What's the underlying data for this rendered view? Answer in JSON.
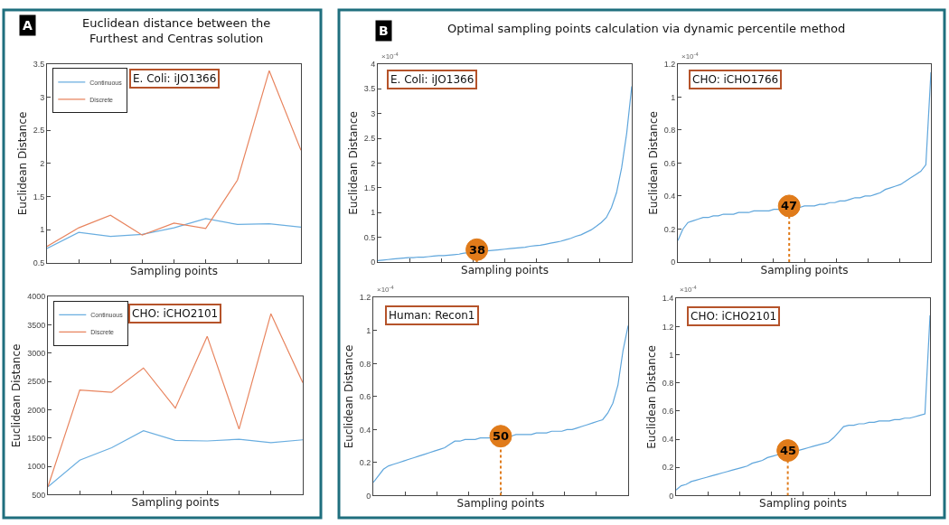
{
  "chart_data": [
    {
      "type": "line",
      "title": "Euclidean distance between the\nFurthest and Centras solution",
      "xlabel": "Sampling points",
      "ylabel": "Euclidean Distance",
      "categories": [
        null,
        null,
        null,
        null,
        null,
        null,
        null,
        null,
        null
      ],
      "series": [
        {
          "name": "Continuous",
          "color": "#6aaee0",
          "values": [
            0.72,
            0.96,
            0.9,
            0.93,
            1.03,
            1.17,
            1.08,
            1.09,
            1.04
          ]
        },
        {
          "name": "Discrete",
          "color": "#e8845e",
          "values": [
            0.75,
            1.03,
            1.22,
            0.92,
            1.1,
            1.02,
            1.75,
            3.4,
            2.2
          ]
        }
      ],
      "ylim": [
        0.5,
        3.5
      ],
      "yticks": [
        0.5,
        1,
        1.5,
        2,
        2.5,
        3,
        3.5
      ],
      "tick_labels": "y",
      "legend": "top left",
      "annotations": [
        "A",
        "E. Coli: iJO1366"
      ]
    },
    {
      "type": "line",
      "xlabel": "Sampling points",
      "ylabel": "Euclidean Distance",
      "categories": [
        null,
        null,
        null,
        null,
        null,
        null,
        null,
        null,
        null
      ],
      "series": [
        {
          "name": "Continuous",
          "color": "#6aaee0",
          "values": [
            640,
            1110,
            1330,
            1630,
            1460,
            1450,
            1480,
            1420,
            1470
          ]
        },
        {
          "name": "Discrete",
          "color": "#e8845e",
          "values": [
            640,
            2350,
            2310,
            2740,
            2030,
            3300,
            1660,
            3700,
            2480
          ]
        }
      ],
      "ylim": [
        500,
        4000
      ],
      "yticks": [
        500,
        1000,
        1500,
        2000,
        2500,
        3000,
        3500,
        4000
      ],
      "tick_labels": "y",
      "legend": "top left",
      "annotations": [
        "CHO: iCHO2101"
      ]
    },
    {
      "type": "line",
      "title": "Optimal sampling points calculation via dynamic percentile method",
      "xlabel": "Sampling points",
      "ylabel": "Euclidean Distance",
      "categories": [
        null,
        null,
        null,
        null,
        null,
        null,
        null,
        null,
        null,
        null,
        null,
        null,
        null,
        null,
        null,
        null,
        null,
        null,
        null,
        null,
        null,
        null,
        null,
        null,
        null,
        null,
        null,
        null,
        null,
        null,
        null,
        null,
        null,
        null,
        null,
        null,
        null,
        null,
        null,
        null,
        null,
        null,
        null,
        null,
        null,
        null,
        null,
        null,
        null,
        null,
        null
      ],
      "series": [
        {
          "color": "#5fa6dc",
          "values": [
            0.03,
            0.04,
            0.05,
            0.06,
            0.07,
            0.08,
            0.09,
            0.09,
            0.1,
            0.1,
            0.11,
            0.12,
            0.13,
            0.13,
            0.14,
            0.15,
            0.16,
            0.18,
            null,
            null,
            null,
            null,
            0.23,
            0.24,
            0.25,
            0.26,
            0.27,
            0.28,
            0.29,
            0.3,
            0.32,
            0.33,
            0.34,
            0.36,
            0.38,
            0.4,
            0.42,
            0.45,
            0.48,
            0.52,
            0.55,
            0.6,
            0.65,
            0.72,
            0.8,
            0.9,
            1.1,
            1.4,
            1.9,
            2.6,
            3.55
          ]
        }
      ],
      "ylim": [
        0,
        4
      ],
      "yticks": [
        0,
        0.5,
        1,
        1.5,
        2,
        2.5,
        3,
        3.5,
        4
      ],
      "tick_labels": "y",
      "annotations": [
        "B",
        "×10$^{-4}$",
        "E. Coli: iJO1366",
        {
          "text": "38",
          "y": 0.25
        }
      ]
    },
    {
      "type": "line",
      "xlabel": "Sampling points",
      "ylabel": "Euclidean Distance",
      "categories": [
        null,
        null,
        null,
        null,
        null,
        null,
        null,
        null,
        null,
        null,
        null,
        null,
        null,
        null,
        null,
        null,
        null,
        null,
        null,
        null,
        null,
        null,
        null,
        null,
        null,
        null,
        null,
        null,
        null,
        null,
        null,
        null,
        null,
        null,
        null,
        null,
        null,
        null,
        null,
        null,
        null,
        null,
        null,
        null,
        null,
        null,
        null,
        null,
        null,
        null,
        null
      ],
      "series": [
        {
          "color": "#5fa6dc",
          "values": [
            0.13,
            0.2,
            0.24,
            0.25,
            0.26,
            0.27,
            0.27,
            0.28,
            0.28,
            0.29,
            0.29,
            0.29,
            0.3,
            0.3,
            0.3,
            0.31,
            0.31,
            0.31,
            0.31,
            0.32,
            0.32,
            null,
            null,
            null,
            0.33,
            0.34,
            0.34,
            0.34,
            0.35,
            0.35,
            0.36,
            0.36,
            0.37,
            0.37,
            0.38,
            0.39,
            0.39,
            0.4,
            0.4,
            0.41,
            0.42,
            0.44,
            0.45,
            0.46,
            0.47,
            0.49,
            0.51,
            0.53,
            0.55,
            0.59,
            1.15
          ]
        }
      ],
      "ylim": [
        0,
        1.2
      ],
      "yticks": [
        0,
        0.2,
        0.4,
        0.6,
        0.8,
        1,
        1.2
      ],
      "tick_labels": "y",
      "annotations": [
        "×10$^{-4}$",
        "CHO: iCHO1766",
        {
          "text": "47",
          "y": 0.34
        }
      ]
    },
    {
      "type": "line",
      "xlabel": "Sampling points",
      "ylabel": "Euclidean Distance",
      "categories": [
        null,
        null,
        null,
        null,
        null,
        null,
        null,
        null,
        null,
        null,
        null,
        null,
        null,
        null,
        null,
        null,
        null,
        null,
        null,
        null,
        null,
        null,
        null,
        null,
        null,
        null,
        null,
        null,
        null,
        null,
        null,
        null,
        null,
        null,
        null,
        null,
        null,
        null,
        null,
        null,
        null,
        null,
        null,
        null,
        null,
        null,
        null,
        null,
        null,
        null,
        null
      ],
      "series": [
        {
          "color": "#5fa6dc",
          "values": [
            0.08,
            0.12,
            0.16,
            0.18,
            0.19,
            0.2,
            0.21,
            0.22,
            0.23,
            0.24,
            0.25,
            0.26,
            0.27,
            0.28,
            0.29,
            0.31,
            0.33,
            0.33,
            0.34,
            0.34,
            0.34,
            0.35,
            0.35,
            0.35,
            null,
            null,
            null,
            0.36,
            0.37,
            0.37,
            0.37,
            0.37,
            0.38,
            0.38,
            0.38,
            0.39,
            0.39,
            0.39,
            0.4,
            0.4,
            0.41,
            0.42,
            0.43,
            0.44,
            0.45,
            0.46,
            0.5,
            0.56,
            0.67,
            0.88,
            1.03
          ]
        }
      ],
      "ylim": [
        0,
        1.2
      ],
      "yticks": [
        0,
        0.2,
        0.4,
        0.6,
        0.8,
        1,
        1.2
      ],
      "tick_labels": "y",
      "annotations": [
        "×10$^{-4}$",
        "Human: Recon1",
        {
          "text": "50",
          "y": 0.36
        }
      ]
    },
    {
      "type": "line",
      "xlabel": "Sampling points",
      "ylabel": "Euclidean Distance",
      "categories": [
        null,
        null,
        null,
        null,
        null,
        null,
        null,
        null,
        null,
        null,
        null,
        null,
        null,
        null,
        null,
        null,
        null,
        null,
        null,
        null,
        null,
        null,
        null,
        null,
        null,
        null,
        null,
        null,
        null,
        null,
        null,
        null,
        null,
        null,
        null,
        null,
        null,
        null,
        null,
        null,
        null,
        null,
        null,
        null,
        null,
        null,
        null,
        null,
        null,
        null,
        null
      ],
      "series": [
        {
          "color": "#5fa6dc",
          "values": [
            0.04,
            0.07,
            0.08,
            0.1,
            0.11,
            0.12,
            0.13,
            0.14,
            0.15,
            0.16,
            0.17,
            0.18,
            0.19,
            0.2,
            0.21,
            0.23,
            0.24,
            0.25,
            0.27,
            0.28,
            0.29,
            null,
            null,
            null,
            0.32,
            0.33,
            0.34,
            0.35,
            0.36,
            0.37,
            0.38,
            0.41,
            0.45,
            0.49,
            0.5,
            0.5,
            0.51,
            0.51,
            0.52,
            0.52,
            0.53,
            0.53,
            0.53,
            0.54,
            0.54,
            0.55,
            0.55,
            0.56,
            0.57,
            0.58,
            1.28
          ]
        }
      ],
      "ylim": [
        0,
        1.4
      ],
      "yticks": [
        0,
        0.2,
        0.4,
        0.6,
        0.8,
        1,
        1.2,
        1.4
      ],
      "tick_labels": "y",
      "annotations": [
        "×10$^{-4}$",
        "CHO: iCHO2101",
        {
          "text": "45",
          "y": 0.32
        }
      ]
    }
  ]
}
